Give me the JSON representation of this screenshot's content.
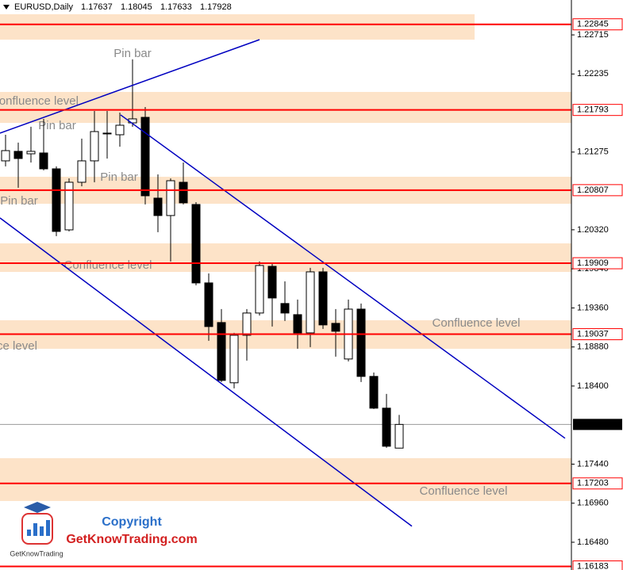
{
  "chart_data": {
    "type": "candlestick",
    "title": "EURUSD,Daily",
    "open": [
      1.21167,
      1.21284,
      1.21254,
      1.21264,
      1.21069,
      1.20319,
      1.20904,
      1.21167,
      1.21508,
      1.21488,
      1.21634,
      1.21702,
      1.20709,
      1.20495,
      1.20904,
      1.20631,
      1.19667,
      1.1918,
      1.1844,
      1.19024,
      1.19297,
      1.19871,
      1.19414,
      1.19277,
      1.19053,
      1.19803,
      1.1917,
      1.18732,
      1.19345,
      1.18518,
      1.18128,
      1.17637
    ],
    "high": [
      1.21488,
      1.21391,
      1.21586,
      1.21683,
      1.21099,
      1.20952,
      1.2144,
      1.2178,
      1.2178,
      1.21761,
      1.22414,
      1.21829,
      1.21001,
      1.20952,
      1.21147,
      1.2066,
      1.19784,
      1.19345,
      1.19053,
      1.19345,
      1.1993,
      1.199,
      1.19686,
      1.19462,
      1.19852,
      1.19852,
      1.19345,
      1.19462,
      1.19414,
      1.18566,
      1.18303,
      1.18045
    ],
    "low": [
      1.21099,
      1.20836,
      1.21147,
      1.2105,
      1.20242,
      1.203,
      1.20855,
      1.20904,
      1.21196,
      1.21342,
      1.21586,
      1.20631,
      1.2029,
      1.1993,
      1.20631,
      1.19638,
      1.18956,
      1.18449,
      1.18371,
      1.18712,
      1.19267,
      1.19131,
      1.19199,
      1.18858,
      1.18878,
      1.19102,
      1.18761,
      1.18703,
      1.18449,
      1.18118,
      1.17641,
      1.17633
    ],
    "close": [
      1.21293,
      1.21196,
      1.21284,
      1.21069,
      1.203,
      1.20904,
      1.21167,
      1.21527,
      1.21508,
      1.21605,
      1.21683,
      1.20738,
      1.20495,
      1.20923,
      1.20651,
      1.19667,
      1.19131,
      1.18469,
      1.19024,
      1.19297,
      1.19881,
      1.19482,
      1.19297,
      1.19053,
      1.19803,
      1.19151,
      1.19073,
      1.19345,
      1.18518,
      1.18128,
      1.1766,
      1.17928
    ],
    "ylim": [
      1.16139,
      1.23144
    ],
    "yticks": [
      1.22715,
      1.22235,
      1.21275,
      {
        "value": 1.2032,
        "label": "1.20320"
      },
      {
        "value": 1.1984,
        "label": "1.19840"
      },
      {
        "value": 1.1936,
        "label": "1.19360"
      },
      {
        "value": 1.1888,
        "label": "1.18880"
      },
      {
        "value": 1.184,
        "label": "1.18400"
      },
      {
        "value": 1.1744,
        "label": "1.17440"
      },
      {
        "value": 1.1696,
        "label": "1.16960"
      },
      {
        "value": 1.1648,
        "label": "1.16480"
      }
    ],
    "levels": [
      1.22845,
      1.21793,
      1.20807,
      1.19909,
      1.19037,
      1.17203,
      1.16183
    ],
    "level_color": "#ff0000",
    "zones": [
      [
        1.22657,
        1.22969
      ],
      [
        1.21634,
        1.22014
      ],
      [
        1.2064,
        1.20972
      ],
      [
        1.19802,
        1.20153
      ],
      [
        1.18858,
        1.19208
      ],
      [
        1.16987,
        1.17513
      ]
    ],
    "zone_color": "#fde3c8",
    "trendlines": [
      {
        "x": [
          -0.44,
          20
        ],
        "y": [
          1.21508,
          1.22657
        ]
      },
      {
        "x": [
          9.06,
          44.06
        ],
        "y": [
          1.21732,
          1.17758
        ]
      },
      {
        "x": [
          -0.44,
          32
        ],
        "y": [
          1.20466,
          1.16677
        ]
      }
    ],
    "trend_color": "#0000c0",
    "annotations": [
      "Pin bar",
      "Pin bar",
      "Pin bar",
      "Pin bar",
      "Confluence level",
      "Confluence level",
      "Confluence level",
      "Confluence level",
      "Confluence level"
    ],
    "watermark": {
      "title": "Copyright",
      "site": "GetKnowTrading.com",
      "logo": "GetKnowTrading"
    }
  }
}
